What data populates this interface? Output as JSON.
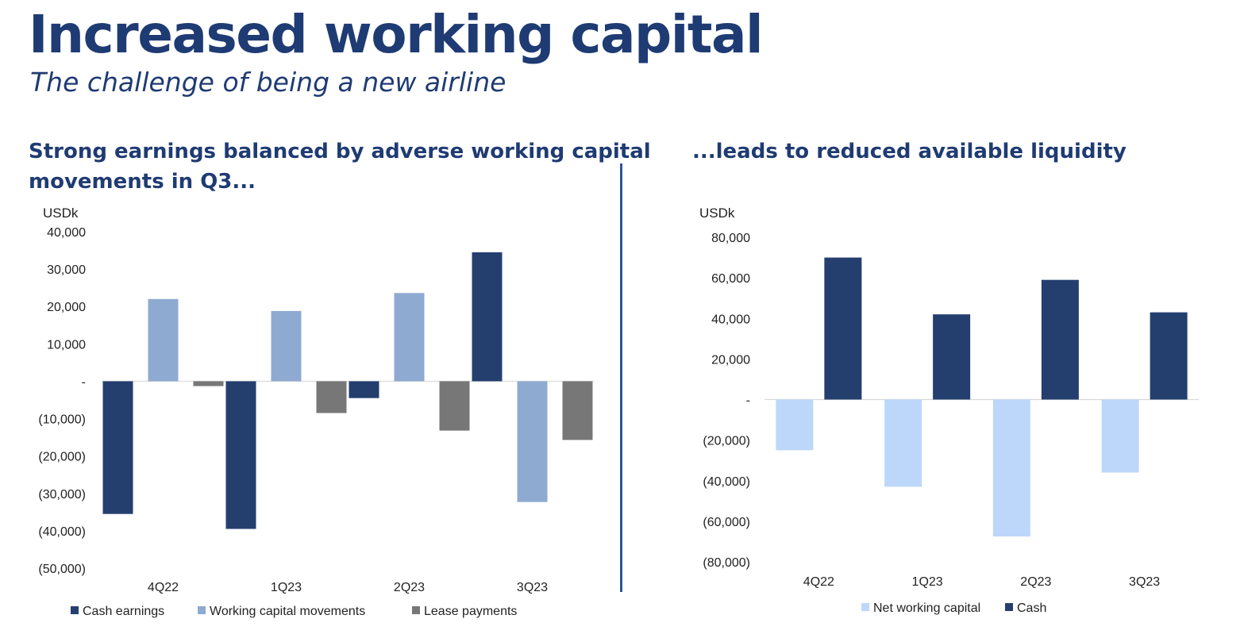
{
  "header": {
    "title": "Increased working capital",
    "subtitle": "The challenge of being a new airline"
  },
  "left_panel": {
    "heading_line1": "Strong earnings balanced by adverse working capital",
    "heading_line2": "movements in Q3..."
  },
  "right_panel": {
    "heading": "...leads to reduced available liquidity"
  },
  "colors": {
    "title": "#1f3b73",
    "cash_earnings": "#243f6e",
    "working_capital_movements": "#8faad1",
    "lease_payments": "#777777",
    "net_working_capital": "#bdd7fa",
    "cash": "#243f6e",
    "divider": "#2f5597"
  },
  "chart_data": [
    {
      "type": "bar",
      "title": "Strong earnings balanced by adverse working capital movements in Q3...",
      "unit_label": "USDk",
      "categories": [
        "4Q22",
        "1Q23",
        "2Q23",
        "3Q23"
      ],
      "series": [
        {
          "name": "Cash earnings",
          "color": "#243f6e",
          "values": [
            -35500,
            -39500,
            -4500,
            34500
          ]
        },
        {
          "name": "Working capital movements",
          "color": "#8faad1",
          "values": [
            22000,
            18800,
            23600,
            -32300
          ]
        },
        {
          "name": "Lease payments",
          "color": "#777777",
          "values": [
            -1300,
            -8500,
            -13200,
            -15700
          ]
        }
      ],
      "ylim": [
        -50000,
        40000
      ],
      "yticks": [
        40000,
        30000,
        20000,
        10000,
        0,
        -10000,
        -20000,
        -30000,
        -40000,
        -50000
      ],
      "ytick_labels": [
        "40,000",
        "30,000",
        "20,000",
        "10,000",
        "-",
        "(10,000)",
        "(20,000)",
        "(30,000)",
        "(40,000)",
        "(50,000)"
      ],
      "legend": "bottom"
    },
    {
      "type": "bar",
      "title": "...leads to reduced available liquidity",
      "unit_label": "USDk",
      "categories": [
        "4Q22",
        "1Q23",
        "2Q23",
        "3Q23"
      ],
      "series": [
        {
          "name": "Net working capital",
          "color": "#bdd7fa",
          "values": [
            -25000,
            -43000,
            -67500,
            -36000
          ]
        },
        {
          "name": "Cash",
          "color": "#243f6e",
          "values": [
            70000,
            42000,
            59000,
            43000
          ]
        }
      ],
      "ylim": [
        -80000,
        80000
      ],
      "yticks": [
        80000,
        60000,
        40000,
        20000,
        0,
        -20000,
        -40000,
        -60000,
        -80000
      ],
      "ytick_labels": [
        "80,000",
        "60,000",
        "40,000",
        "20,000",
        "-",
        "(20,000)",
        "(40,000)",
        "(60,000)",
        "(80,000)"
      ],
      "legend": "bottom"
    }
  ]
}
